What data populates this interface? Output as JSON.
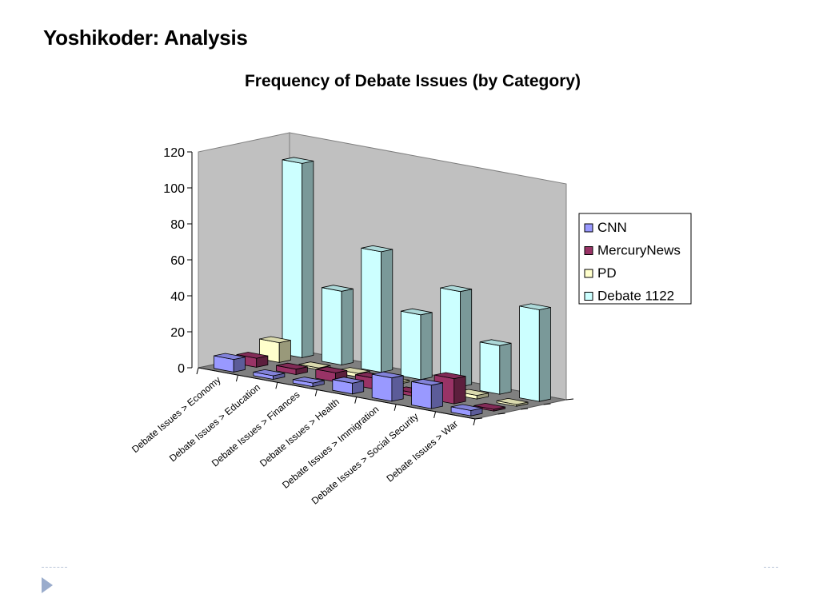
{
  "slide": {
    "title": "Yoshikoder: Analysis"
  },
  "chart_data": {
    "type": "bar",
    "title": "Frequency of Debate Issues (by Category)",
    "xlabel": "",
    "ylabel": "",
    "ylim": [
      0,
      120
    ],
    "yticks": [
      "0",
      "20",
      "40",
      "60",
      "80",
      "100",
      "120"
    ],
    "categories": [
      "Debate Issues > Economy",
      "Debate Issues > Education",
      "Debate Issues > Finances",
      "Debate Issues > Health",
      "Debate Issues > Immigration",
      "Debate Issues > Social Security",
      "Debate Issues > War"
    ],
    "series": [
      {
        "name": "CNN",
        "color": "#9999ff",
        "values": [
          7,
          2,
          2,
          6,
          13,
          13,
          3
        ]
      },
      {
        "name": "MercuryNews",
        "color": "#993366",
        "values": [
          5,
          3,
          5,
          6,
          2,
          14,
          1
        ]
      },
      {
        "name": "PD",
        "color": "#ffffcc",
        "values": [
          11,
          1,
          2,
          1,
          1,
          2,
          1
        ]
      },
      {
        "name": "Debate 1122",
        "color": "#ccffff",
        "values": [
          108,
          41,
          67,
          36,
          53,
          27,
          51
        ]
      }
    ],
    "legend": "right",
    "grid": false,
    "view": "3d-clustered-column"
  }
}
